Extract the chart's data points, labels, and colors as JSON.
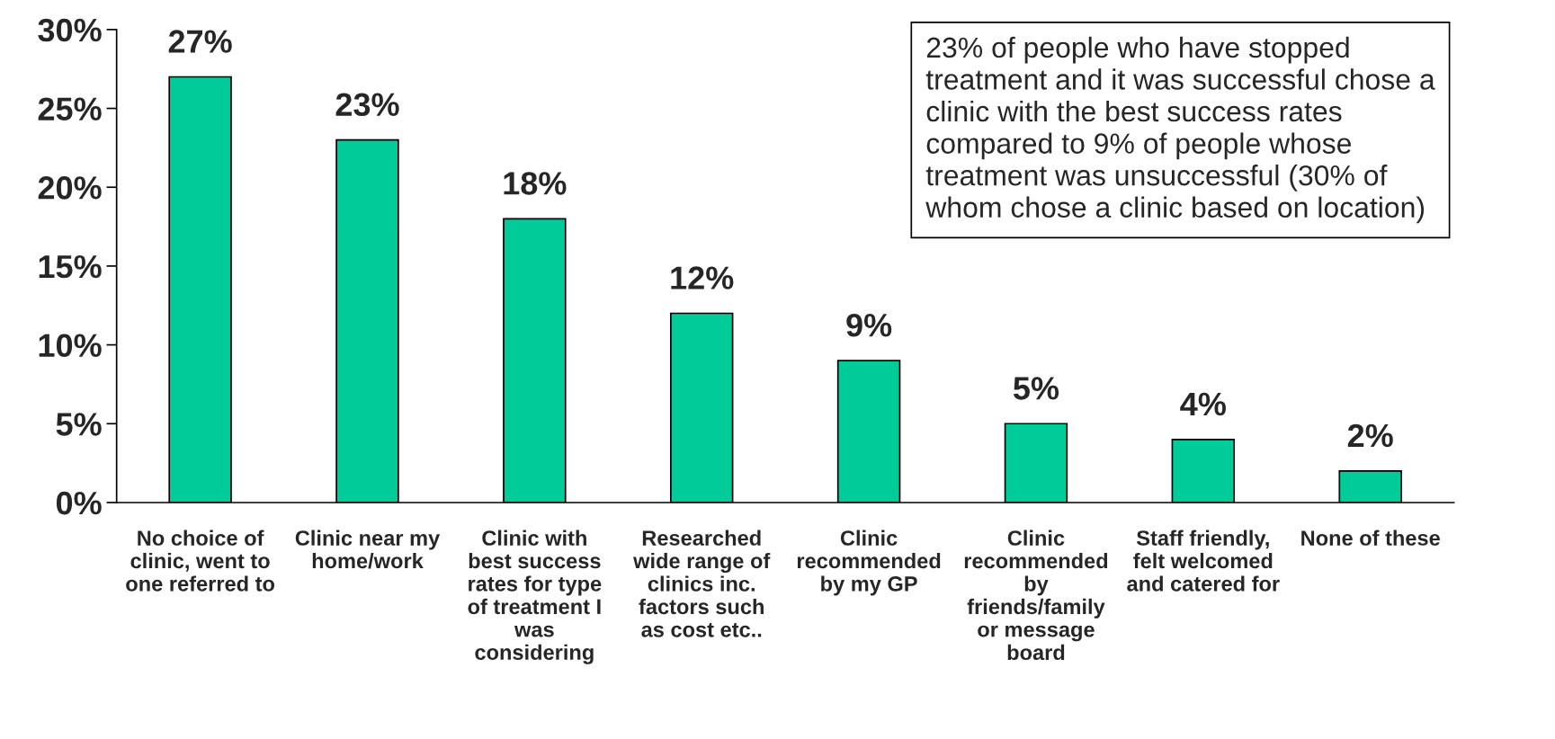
{
  "chart_data": {
    "type": "bar",
    "categories": [
      "No choice of\nclinic, went to\none referred to",
      "Clinic near my\nhome/work",
      "Clinic with\nbest success\nrates for type\nof treatment I\nwas\nconsidering",
      "Researched\nwide range of\nclinics inc.\nfactors such\nas cost etc..",
      "Clinic\nrecommended\nby my GP",
      "Clinic\nrecommended\nby\nfriends/family\nor message\nboard",
      "Staff friendly,\nfelt welcomed\nand catered for",
      "None of these"
    ],
    "values": [
      27,
      23,
      18,
      12,
      9,
      5,
      4,
      2
    ],
    "value_labels": [
      "27%",
      "23%",
      "18%",
      "12%",
      "9%",
      "5%",
      "4%",
      "2%"
    ],
    "color": "#00cc99",
    "ylim": [
      0,
      30
    ],
    "yticks": [
      {
        "value": 0,
        "label": "0%"
      },
      {
        "value": 5,
        "label": "5%"
      },
      {
        "value": 10,
        "label": "10%"
      },
      {
        "value": 15,
        "label": "15%"
      },
      {
        "value": 20,
        "label": "20%"
      },
      {
        "value": 25,
        "label": "25%"
      },
      {
        "value": 30,
        "label": "30%"
      }
    ],
    "grid": false,
    "annotations": [
      "23% of people who have stopped\ntreatment and it was successful chose a\nclinic with the best success rates\ncompared to 9% of people whose\ntreatment was unsuccessful (30% of\nwhom chose a clinic based on location)"
    ]
  }
}
